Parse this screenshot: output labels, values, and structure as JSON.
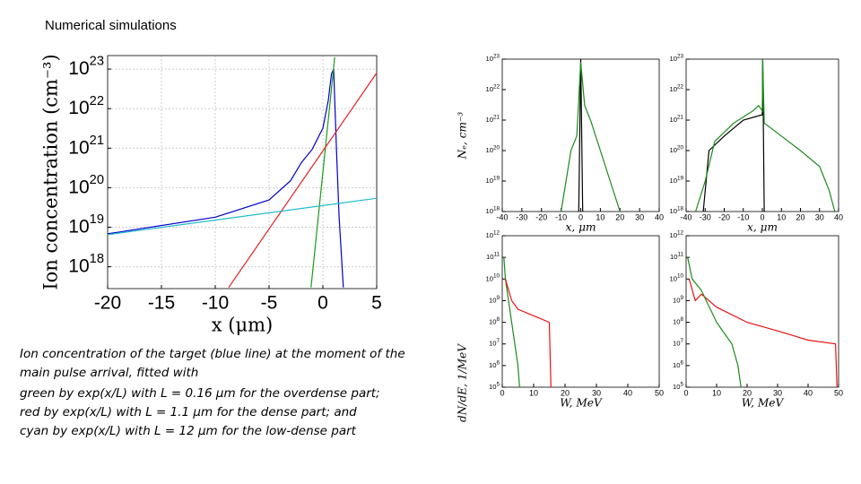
{
  "title": "Numerical simulations",
  "caption": [
    "Ion concentration of the target (blue line) at the moment of the",
    "main pulse arrival, fitted with",
    "green by exp(x/L) with L = 0.16 μm for the overdense part;",
    "red by exp(x/L) with L = 1.1 μm for the dense part; and",
    "cyan by exp(x/L) with L = 12 μm for the low-dense part"
  ],
  "chart_data": [
    {
      "type": "line",
      "x_label": "x (μm)",
      "y_label": "Ion concentration (cm⁻³)",
      "log_y": true,
      "grid": true,
      "xlim": [
        -20,
        5
      ],
      "ylim": [
        2.8e+17,
        2.2e+23
      ],
      "xticks": [
        -20,
        -15,
        -10,
        -5,
        0,
        5
      ],
      "yticks": [
        {
          "value": 1e+18,
          "label": "10",
          "exponent": "18"
        },
        {
          "value": 1e+19,
          "label": "10",
          "exponent": "19"
        },
        {
          "value": 1e+20,
          "label": "10",
          "exponent": "20"
        },
        {
          "value": 1e+21,
          "label": "10",
          "exponent": "21"
        },
        {
          "value": 1e+22,
          "label": "10",
          "exponent": "22"
        },
        {
          "value": 1e+23,
          "label": "10",
          "exponent": "23"
        }
      ],
      "series": [
        {
          "color": "#0000cc",
          "x": [
            -20,
            -10,
            -5,
            -3,
            -2,
            -1,
            0,
            0.5,
            0.8,
            1.0,
            1.3,
            1.5,
            1.9
          ],
          "values": [
            6.8e+18,
            1.8e+19,
            4.9e+19,
            1.5e+20,
            4.3e+20,
            9.3e+20,
            3.2e+21,
            1.6e+22,
            7.6e+22,
            1e+23,
            5e+20,
            2e+19,
            3e+17
          ]
        },
        {
          "color": "#1a9a1a",
          "x": [
            -1.1,
            1.1
          ],
          "values": [
            3e+17,
            2e+23
          ]
        },
        {
          "color": "#dd2222",
          "x": [
            -8.75,
            5
          ],
          "values": [
            3e+17,
            8e+22
          ]
        },
        {
          "color": "#22bbcc",
          "x": [
            -20,
            5
          ],
          "values": [
            6.5e+18,
            5.4e+19
          ]
        }
      ]
    },
    {
      "type": "line",
      "x_label": "x, μm",
      "y_label": "Nₑ, cm⁻³",
      "log_y": true,
      "grid": false,
      "xlim": [
        -40,
        40
      ],
      "ylim": [
        1e+18,
        1e+23
      ],
      "xticks": [
        -40,
        -30,
        -20,
        -10,
        0,
        10,
        20,
        30,
        40
      ],
      "yticks": [
        {
          "value": 1e+18,
          "label": "10",
          "exponent": "18"
        },
        {
          "value": 1e+19,
          "label": "10",
          "exponent": "19"
        },
        {
          "value": 1e+20,
          "label": "10",
          "exponent": "20"
        },
        {
          "value": 1e+21,
          "label": "10",
          "exponent": "21"
        },
        {
          "value": 1e+22,
          "label": "10",
          "exponent": "22"
        },
        {
          "value": 1e+23,
          "label": "10",
          "exponent": "23"
        }
      ],
      "series": [
        {
          "color": "#000000",
          "x": [
            -1,
            0,
            1
          ],
          "values": [
            1e+18,
            1e+23,
            1e+18
          ]
        },
        {
          "color": "#1a8a1a",
          "x": [
            -10,
            -5,
            -2,
            0,
            2,
            5,
            10,
            15,
            20
          ],
          "values": [
            1e+18,
            1e+20,
            3e+20,
            8e+22,
            3e+21,
            1e+21,
            1e+20,
            1e+19,
            1e+18
          ]
        }
      ]
    },
    {
      "type": "line",
      "x_label": "x, μm",
      "log_y": true,
      "grid": false,
      "xlim": [
        -40,
        40
      ],
      "ylim": [
        1e+18,
        1e+23
      ],
      "xticks": [
        -40,
        -30,
        -20,
        -10,
        0,
        10,
        20,
        30,
        40
      ],
      "yticks": [
        {
          "value": 1e+18,
          "label": "10",
          "exponent": "18"
        },
        {
          "value": 1e+19,
          "label": "10",
          "exponent": "19"
        },
        {
          "value": 1e+20,
          "label": "10",
          "exponent": "20"
        },
        {
          "value": 1e+21,
          "label": "10",
          "exponent": "21"
        },
        {
          "value": 1e+22,
          "label": "10",
          "exponent": "22"
        },
        {
          "value": 1e+23,
          "label": "10",
          "exponent": "23"
        }
      ],
      "series": [
        {
          "color": "#000000",
          "x": [
            -31,
            -28,
            -20,
            -10,
            0,
            0.2,
            1
          ],
          "values": [
            1e+18,
            1e+20,
            3e+20,
            1e+21,
            1.5e+21,
            1e+23,
            1e+18
          ]
        },
        {
          "color": "#1a8a1a",
          "x": [
            -35,
            -30,
            -25,
            -15,
            -5,
            -2,
            0,
            0.2,
            1,
            10,
            20,
            30,
            35,
            38
          ],
          "values": [
            1e+18,
            1e+19,
            2e+20,
            8e+20,
            2e+21,
            3e+21,
            2e+21,
            1e+23,
            8e+20,
            3e+20,
            1e+20,
            3e+19,
            5e+18,
            1e+18
          ]
        }
      ]
    },
    {
      "type": "line",
      "x_label": "W, MeV",
      "y_label": "dN/dE, 1/MeV",
      "log_y": true,
      "grid": false,
      "xlim": [
        0,
        50
      ],
      "ylim": [
        100000.0,
        1000000000000.0
      ],
      "xticks": [
        0,
        10,
        20,
        30,
        40,
        50
      ],
      "yticks": [
        {
          "value": 100000.0,
          "label": "10",
          "exponent": "5"
        },
        {
          "value": 1000000.0,
          "label": "10",
          "exponent": "6"
        },
        {
          "value": 10000000.0,
          "label": "10",
          "exponent": "7"
        },
        {
          "value": 100000000.0,
          "label": "10",
          "exponent": "8"
        },
        {
          "value": 1000000000.0,
          "label": "10",
          "exponent": "9"
        },
        {
          "value": 10000000000.0,
          "label": "10",
          "exponent": "10"
        },
        {
          "value": 100000000000.0,
          "label": "10",
          "exponent": "11"
        },
        {
          "value": 1000000000000.0,
          "label": "10",
          "exponent": "12"
        }
      ],
      "series": [
        {
          "color": "#1a8a1a",
          "x": [
            0.5,
            1,
            2,
            3,
            4,
            5,
            5.5
          ],
          "values": [
            100000000000.0,
            10000000000.0,
            1000000000.0,
            100000000.0,
            10000000.0,
            1000000.0,
            100000.0
          ]
        },
        {
          "color": "#ee1111",
          "x": [
            1,
            3,
            5,
            10,
            15,
            15.5
          ],
          "values": [
            10000000000.0,
            1000000000.0,
            400000000.0,
            200000000.0,
            100000000.0,
            100000.0
          ]
        }
      ]
    },
    {
      "type": "line",
      "x_label": "W, MeV",
      "log_y": true,
      "grid": false,
      "xlim": [
        0,
        50
      ],
      "ylim": [
        100000.0,
        1000000000000.0
      ],
      "xticks": [
        0,
        10,
        20,
        30,
        40,
        50
      ],
      "yticks": [
        {
          "value": 100000.0,
          "label": "10",
          "exponent": "5"
        },
        {
          "value": 1000000.0,
          "label": "10",
          "exponent": "6"
        },
        {
          "value": 10000000.0,
          "label": "10",
          "exponent": "7"
        },
        {
          "value": 100000000.0,
          "label": "10",
          "exponent": "8"
        },
        {
          "value": 1000000000.0,
          "label": "10",
          "exponent": "9"
        },
        {
          "value": 10000000000.0,
          "label": "10",
          "exponent": "10"
        },
        {
          "value": 100000000000.0,
          "label": "10",
          "exponent": "11"
        },
        {
          "value": 1000000000000.0,
          "label": "10",
          "exponent": "12"
        }
      ],
      "series": [
        {
          "color": "#ee1111",
          "x": [
            1,
            3,
            5,
            10,
            20,
            30,
            40,
            49,
            49.5
          ],
          "values": [
            10000000000.0,
            1000000000.0,
            2000000000.0,
            500000000.0,
            100000000.0,
            40000000.0,
            15000000.0,
            10000000.0,
            100000.0
          ]
        },
        {
          "color": "#1a8a1a",
          "x": [
            0.5,
            2,
            5,
            10,
            15,
            17,
            18
          ],
          "values": [
            100000000000.0,
            10000000000.0,
            3000000000.0,
            100000000.0,
            10000000.0,
            1000000.0,
            100000.0
          ]
        }
      ]
    }
  ]
}
